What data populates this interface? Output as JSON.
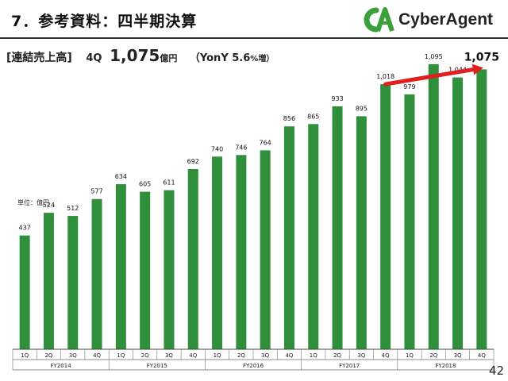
{
  "header": {
    "title": "7．参考資料：四半期決算",
    "logo_text": "CyberAgent"
  },
  "summary": {
    "bracket_label": "[連結売上高]",
    "quarter": "4Q",
    "value": "1,075",
    "unit": "億円",
    "yoy_label": "（YonY 5.6",
    "yoy_unit": "%増）"
  },
  "unit_label": "単位：億円",
  "page_number": "42",
  "colors": {
    "bar": "#2f8f3a",
    "arrow": "#e02020",
    "logo_green": "#3aa13a"
  },
  "chart_data": {
    "type": "bar",
    "title": "",
    "xlabel": "",
    "ylabel": "",
    "grid": false,
    "legend": "none",
    "categories": [
      "1Q",
      "2Q",
      "3Q",
      "4Q",
      "1Q",
      "2Q",
      "3Q",
      "4Q",
      "1Q",
      "2Q",
      "3Q",
      "4Q",
      "1Q",
      "2Q",
      "3Q",
      "4Q",
      "1Q",
      "2Q",
      "3Q",
      "4Q"
    ],
    "values": [
      437,
      524,
      512,
      577,
      634,
      605,
      611,
      692,
      740,
      746,
      764,
      856,
      865,
      933,
      895,
      1018,
      979,
      1095,
      1044,
      1075
    ],
    "data_labels": [
      "437",
      "524",
      "512",
      "577",
      "634",
      "605",
      "611",
      "692",
      "740",
      "746",
      "764",
      "856",
      "865",
      "933",
      "895",
      "1,018",
      "979",
      "1,095",
      "1,044",
      "1,075"
    ],
    "groups": [
      {
        "label": "FY2014",
        "count": 4
      },
      {
        "label": "FY2015",
        "count": 4
      },
      {
        "label": "FY2016",
        "count": 4
      },
      {
        "label": "FY2017",
        "count": 4
      },
      {
        "label": "FY2018",
        "count": 4
      }
    ],
    "ylim": [
      0,
      1250
    ],
    "annotation": {
      "type": "arrow",
      "from_index": 15,
      "to_index": 19
    }
  }
}
